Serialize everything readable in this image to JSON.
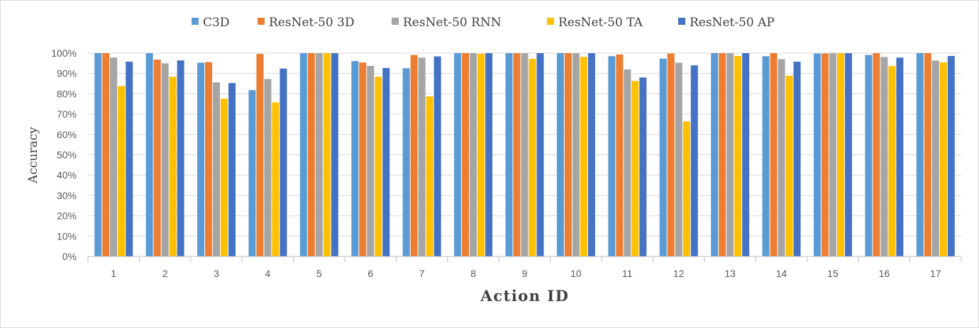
{
  "chart_data": {
    "type": "bar",
    "title": "",
    "xlabel": "Action ID",
    "ylabel": "Accuracy",
    "ylim": [
      0,
      100
    ],
    "y_ticks": [
      "0%",
      "10%",
      "20%",
      "30%",
      "40%",
      "50%",
      "60%",
      "70%",
      "80%",
      "90%",
      "100%"
    ],
    "grid": true,
    "legend_position": "top",
    "categories": [
      "1",
      "2",
      "3",
      "4",
      "5",
      "6",
      "7",
      "8",
      "9",
      "10",
      "11",
      "12",
      "13",
      "14",
      "15",
      "16",
      "17"
    ],
    "series": [
      {
        "name": "C3D",
        "color": "#5b9bd5",
        "values": [
          100,
          100,
          95.3,
          81.8,
          100,
          96.1,
          92.6,
          100,
          100,
          100,
          98.5,
          97.3,
          100,
          98.5,
          99.8,
          99.1,
          100
        ]
      },
      {
        "name": "ResNet-50 3D",
        "color": "#ed7d31",
        "values": [
          100,
          96.8,
          95.6,
          99.6,
          100,
          95.4,
          99.1,
          100,
          100,
          100,
          99.3,
          99.8,
          100,
          100,
          99.8,
          100,
          100
        ]
      },
      {
        "name": "ResNet-50 RNN",
        "color": "#a5a5a5",
        "values": [
          97.8,
          95,
          85.6,
          87.3,
          100,
          93.7,
          97.8,
          100,
          100,
          100,
          92,
          95.3,
          100,
          97.1,
          100,
          98.1,
          96.4
        ]
      },
      {
        "name": "ResNet-50 TA",
        "color": "#ffc000",
        "values": [
          83.8,
          88.4,
          77.6,
          75.8,
          100,
          88.4,
          78.7,
          99.7,
          97.2,
          98.2,
          86.3,
          66.4,
          98.6,
          88.9,
          100,
          93.6,
          95.5
        ]
      },
      {
        "name": "ResNet-50 AP",
        "color": "#4472c4",
        "values": [
          95.8,
          96.4,
          85.3,
          92.4,
          100,
          92.7,
          98.4,
          100,
          100,
          100,
          88,
          94,
          100,
          95.8,
          100,
          97.8,
          98.6
        ]
      }
    ]
  }
}
